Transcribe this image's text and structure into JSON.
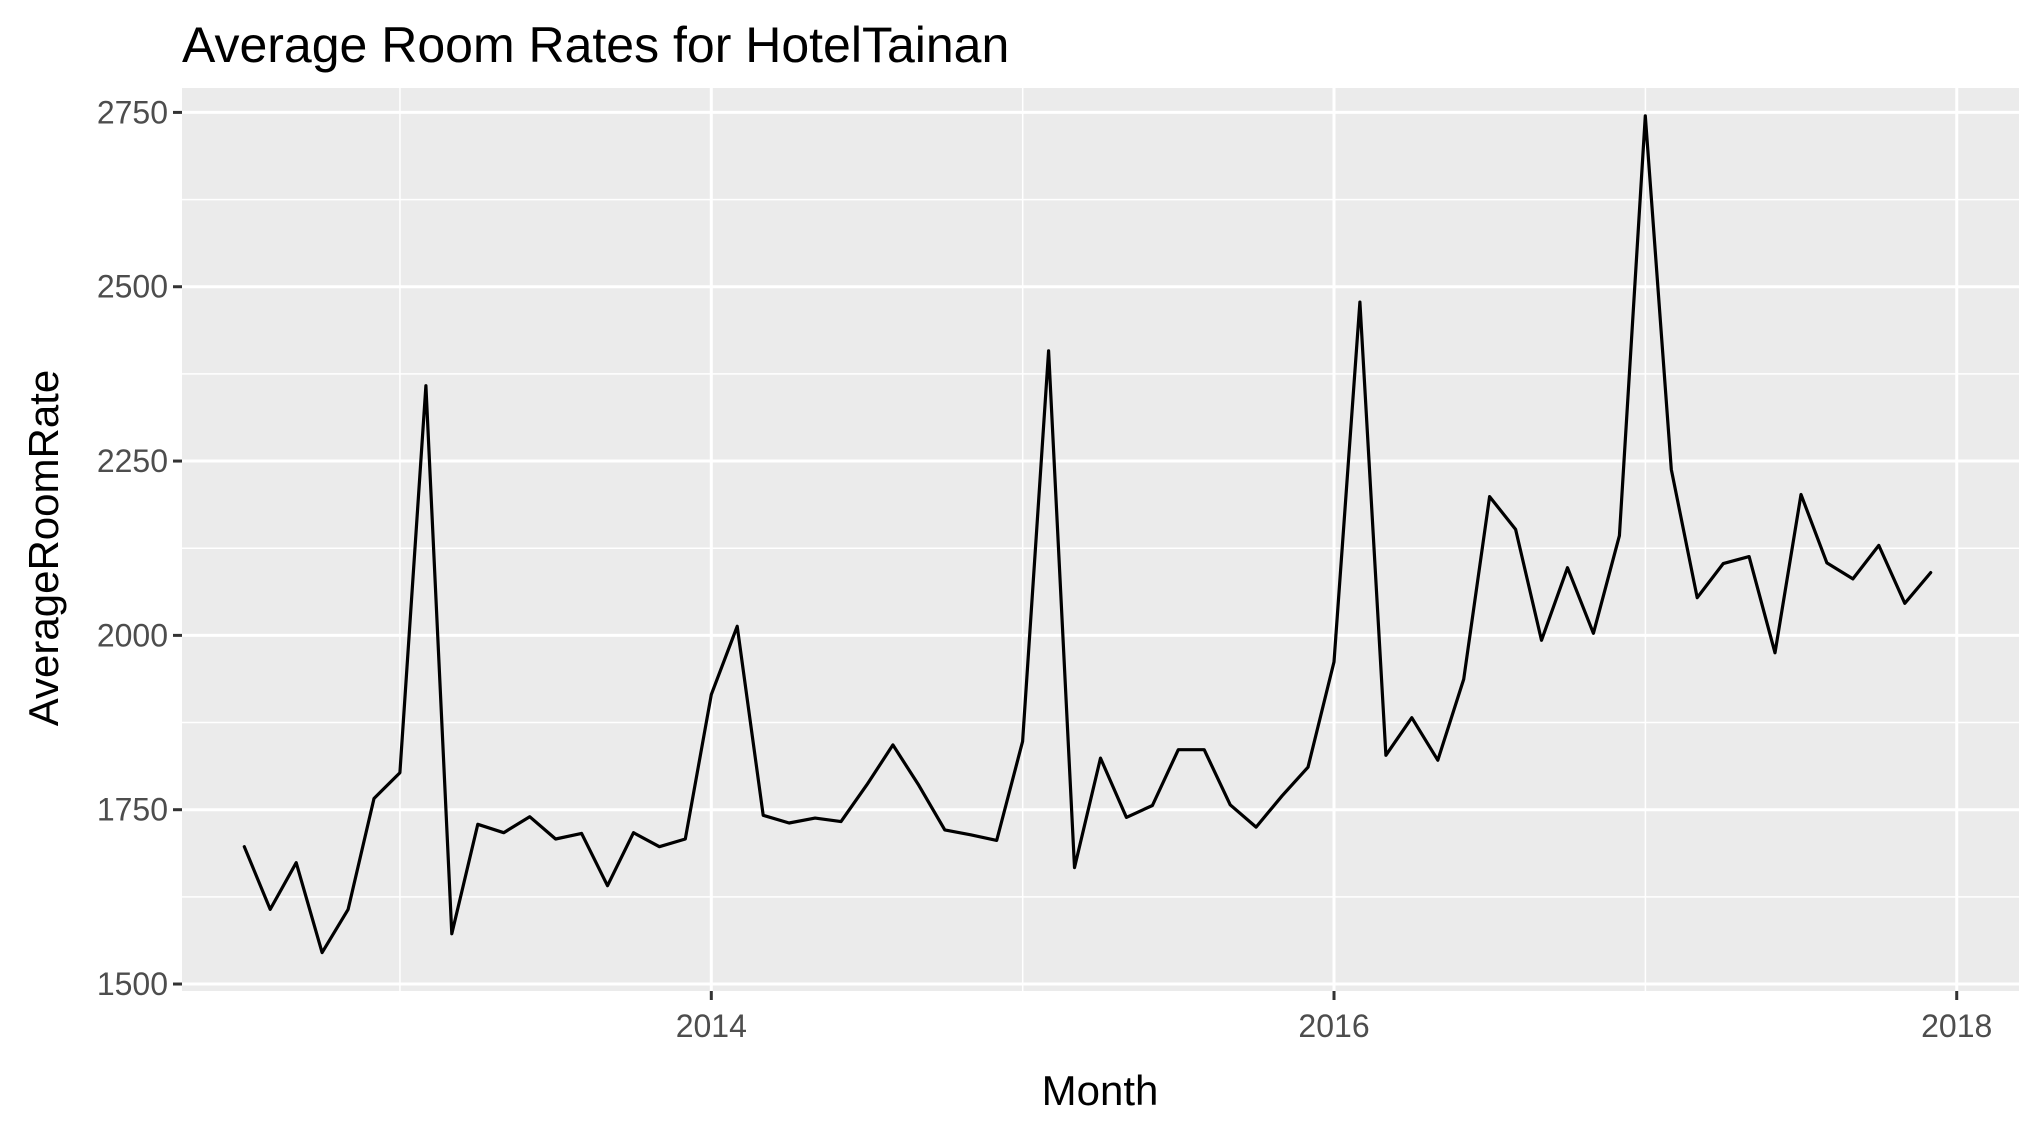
{
  "chart_data": {
    "type": "line",
    "title": "Average Room Rates for HotelTainan",
    "xlabel": "Month",
    "ylabel": "AverageRoomRate",
    "xlim": [
      2012.3,
      2018.2
    ],
    "ylim": [
      1490,
      2785
    ],
    "x_ticks": [
      2014,
      2016,
      2018
    ],
    "x_tick_labels": [
      "2014",
      "2016",
      "2018"
    ],
    "x_minor_ticks": [
      2013,
      2015,
      2017
    ],
    "y_ticks": [
      1500,
      1750,
      2000,
      2250,
      2500,
      2750
    ],
    "y_tick_labels": [
      "1500",
      "1750",
      "2000",
      "2250",
      "2500",
      "2750"
    ],
    "y_minor_ticks": [
      1625,
      1875,
      2125,
      2375,
      2625
    ],
    "grid": true,
    "panel_color": "#ebebeb",
    "line_color": "#000000",
    "series": [
      {
        "x_start": 2012.5,
        "x_step": 0.08333,
        "values": [
          1697,
          1607,
          1674,
          1545,
          1607,
          1766,
          1803,
          2358,
          1572,
          1729,
          1717,
          1740,
          1708,
          1716,
          1641,
          1717,
          1697,
          1708,
          1915,
          2013,
          1742,
          1731,
          1738,
          1733,
          1786,
          1843,
          1785,
          1721,
          1714,
          1706,
          1848,
          2408,
          1667,
          1824,
          1739,
          1756,
          1836,
          1836,
          1757,
          1725,
          1770,
          1811,
          1962,
          2478,
          1828,
          1882,
          1821,
          1937,
          2199,
          2152,
          1993,
          2097,
          2003,
          2143,
          2745,
          2238,
          2054,
          2103,
          2113,
          1975,
          2202,
          2104,
          2081,
          2129,
          2046,
          2090
        ]
      }
    ]
  }
}
